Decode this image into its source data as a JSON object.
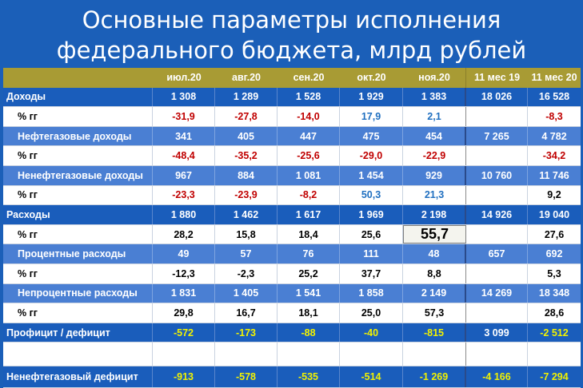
{
  "title_line1": "Основные параметры исполнения",
  "title_line2": "федерального бюджета, млрд рублей",
  "header": [
    "",
    "июл.20",
    "авг.20",
    "сен.20",
    "окт.20",
    "ноя.20",
    "11 мес 19",
    "11 мес 20"
  ],
  "rows": {
    "r1": {
      "label": "Доходы",
      "v": [
        "1 308",
        "1 289",
        "1 528",
        "1 929",
        "1 383",
        "18 026",
        "16 528"
      ]
    },
    "r2": {
      "label": "% гг",
      "v": [
        "-31,9",
        "-27,8",
        "-14,0",
        "17,9",
        "2,1",
        "",
        "-8,3"
      ]
    },
    "r3": {
      "label": "Нефтегазовые доходы",
      "v": [
        "341",
        "405",
        "447",
        "475",
        "454",
        "7 265",
        "4 782"
      ]
    },
    "r4": {
      "label": "% гг",
      "v": [
        "-48,4",
        "-35,2",
        "-25,6",
        "-29,0",
        "-22,9",
        "",
        "-34,2"
      ]
    },
    "r5": {
      "label": "Ненефтегазовые доходы",
      "v": [
        "967",
        "884",
        "1 081",
        "1 454",
        "929",
        "10 760",
        "11 746"
      ]
    },
    "r6": {
      "label": "% гг",
      "v": [
        "-23,3",
        "-23,9",
        "-8,2",
        "50,3",
        "21,3",
        "",
        "9,2"
      ]
    },
    "r7": {
      "label": "Расходы",
      "v": [
        "1 880",
        "1 462",
        "1 617",
        "1 969",
        "2 198",
        "14 926",
        "19 040"
      ]
    },
    "r8": {
      "label": "% гг",
      "v": [
        "28,2",
        "15,8",
        "18,4",
        "25,6",
        "55,7",
        "",
        "27,6"
      ]
    },
    "r9": {
      "label": "Процентные расходы",
      "v": [
        "49",
        "57",
        "76",
        "111",
        "48",
        "657",
        "692"
      ]
    },
    "r10": {
      "label": "% гг",
      "v": [
        "-12,3",
        "-2,3",
        "25,2",
        "37,7",
        "8,8",
        "",
        "5,3"
      ]
    },
    "r11": {
      "label": "Непроцентные расходы",
      "v": [
        "1 831",
        "1 405",
        "1 541",
        "1 858",
        "2 149",
        "14 269",
        "18 348"
      ]
    },
    "r12": {
      "label": "% гг",
      "v": [
        "29,8",
        "16,7",
        "18,1",
        "25,0",
        "57,3",
        "",
        "28,6"
      ]
    },
    "r13": {
      "label": "Профицит / дефицит",
      "v": [
        "-572",
        "-173",
        "-88",
        "-40",
        "-815",
        "3 099",
        "-2 512"
      ]
    },
    "r14": {
      "label": "",
      "v": [
        "",
        "",
        "",
        "",
        "",
        "",
        ""
      ]
    },
    "r15": {
      "label": "Ненефтегазовый дефицит",
      "v": [
        "-913",
        "-578",
        "-535",
        "-514",
        "-1 269",
        "-4 166",
        "-7 294"
      ]
    }
  },
  "colors": {
    "background": "#1b5fb8",
    "header": "#a89b34",
    "main_row": "#1a5dbb",
    "mid_row": "#4a7fd3",
    "negative": "#c00000",
    "positive": "#1f6fc0",
    "balance": "#f2f200"
  }
}
